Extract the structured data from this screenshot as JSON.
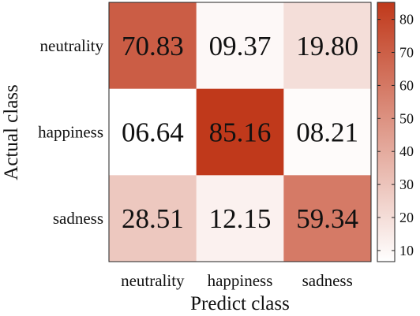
{
  "chart_data": {
    "type": "heatmap",
    "xlabel": "Predict class",
    "ylabel": "Actual class",
    "x_categories": [
      "neutrality",
      "happiness",
      "sadness"
    ],
    "y_categories": [
      "neutrality",
      "happiness",
      "sadness"
    ],
    "values": [
      [
        70.83,
        9.37,
        19.8
      ],
      [
        6.64,
        85.16,
        8.21
      ],
      [
        28.51,
        12.15,
        59.34
      ]
    ],
    "cell_labels": [
      [
        "70.83",
        "09.37",
        "19.80"
      ],
      [
        "06.64",
        "85.16",
        "08.21"
      ],
      [
        "28.51",
        "12.15",
        "59.34"
      ]
    ],
    "colorbar": {
      "range": [
        6.64,
        85.16
      ],
      "ticks": [
        10,
        20,
        30,
        40,
        50,
        60,
        70,
        80
      ],
      "tick_labels": [
        "10",
        "20",
        "30",
        "40",
        "50",
        "60",
        "70",
        "80"
      ],
      "color_low": "#ffffff",
      "color_high": "#c0391b"
    }
  }
}
